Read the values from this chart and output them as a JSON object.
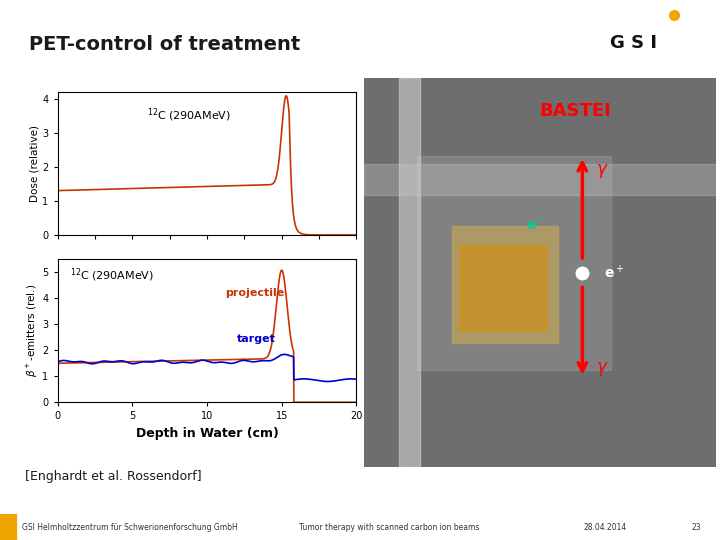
{
  "title": "PET-control of treatment",
  "bg_color": "#ffffff",
  "title_color": "#1a1a1a",
  "title_fontsize": 14,
  "header_bar_color": "#f0a500",
  "header_stripe_color": "#e8e8e8",
  "footer_bg": "#f0a500",
  "footer_stripe_color": "#e8e8e8",
  "footer_text_left": "GSI Helmholtzzentrum für Schwerionenforschung GmbH",
  "footer_text_center": "Tumor therapy with scanned carbon ion beams",
  "footer_text_date": "28.04.2014",
  "footer_text_page": "23",
  "citation": "[Enghardt et al. Rossendorf]",
  "dose_title": "$^{12}$C (290AMeV)",
  "dose_ylabel": "Dose (relative)",
  "dose_xlim": [
    0,
    20
  ],
  "dose_ylim": [
    0,
    4.2
  ],
  "dose_yticks": [
    0,
    1,
    2,
    3,
    4
  ],
  "dose_color": "#cc3300",
  "beta_title": "$^{12}$C (290AMeV)",
  "beta_xlabel": "Depth in Water (cm)",
  "beta_ylabel": "$\\beta^+$-emitters (rel.)",
  "beta_xlim": [
    0,
    20
  ],
  "beta_ylim": [
    0,
    5.5
  ],
  "beta_yticks": [
    0,
    1,
    2,
    3,
    4,
    5
  ],
  "beta_proj_color": "#cc3300",
  "beta_proj_label": "projectile",
  "beta_targ_color": "#0000cc",
  "beta_targ_label": "target",
  "beta_xticks": [
    0,
    5,
    10,
    15,
    20
  ],
  "photo_bg": "#7a7a7a",
  "bastei_color": "#ff0000",
  "gamma_color": "#ff0000",
  "eplus_color": "#ffffff",
  "eminus_color": "#00cc99",
  "arrow_color": "#ff0000"
}
